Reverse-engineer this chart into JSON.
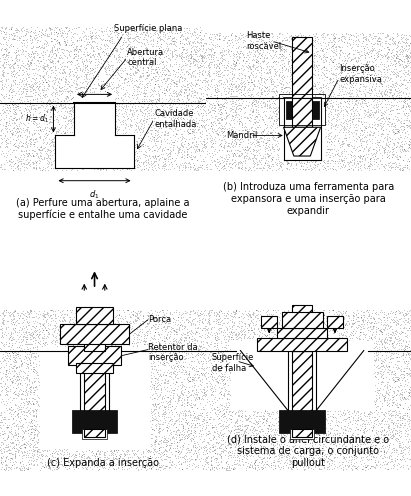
{
  "caption_a": "(a) Perfure uma abertura, aplaine a\nsuperfície e entalhe uma cavidade",
  "caption_b": "(b) Introduza uma ferramenta para\nexpansora e uma inserção para\nexpandir",
  "caption_c": "(c) Expanda a inserção",
  "caption_d": "(d) Instale o anel circundante e o\nsistema de carga; o conjunto\npullout",
  "label_superficie_plana": "Superfície plana",
  "label_abertura": "Abertura\ncentral",
  "label_cavidade": "Cavidade\nentalhada",
  "label_d1": "d₁",
  "label_haste": "Haste\nroscável",
  "label_insercao_exp": "Inserção\nexpansiva",
  "label_mandril": "Mandril",
  "label_porca": "Porca",
  "label_retentor": "Retentor da\ninserção",
  "label_superficie_falha": "Superfície\nde falha",
  "font_size_caption": 7.0,
  "font_size_label": 6.5
}
